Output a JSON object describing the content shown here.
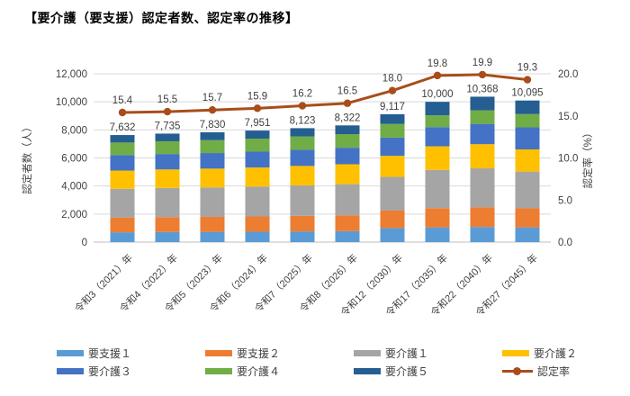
{
  "title": "【要介護（要支援）認定者数、認定率の推移】",
  "colors": {
    "text": "#404040",
    "title_text": "#000000",
    "grid": "#D9D9D9",
    "axis_line": "#BFBFBF"
  },
  "chart_data": {
    "type": "combo-stacked-bar-line",
    "grid": "on",
    "legend_position": "bottom",
    "categories": [
      "令和3（2021）年",
      "令和4（2022）年",
      "令和5（2023）年",
      "令和6（2024）年",
      "令和7（2025）年",
      "令和8（2026）年",
      "令和12（2030）年",
      "令和17（2035）年",
      "令和22（2040）年",
      "令和27（2045）年"
    ],
    "bar_totals": [
      7632,
      7735,
      7830,
      7951,
      8123,
      8322,
      9117,
      10000,
      10368,
      10095
    ],
    "bar_total_labels": [
      "7,632",
      "7,735",
      "7,830",
      "7,951",
      "8,123",
      "8,322",
      "9,117",
      "10,000",
      "10,368",
      "10,095"
    ],
    "series": [
      {
        "name": "要支援１",
        "color": "#5B9BD5",
        "values": [
          700,
          720,
          730,
          740,
          760,
          780,
          1000,
          1050,
          1080,
          1050
        ]
      },
      {
        "name": "要支援２",
        "color": "#ED7D31",
        "values": [
          1050,
          1060,
          1070,
          1090,
          1110,
          1130,
          1250,
          1370,
          1400,
          1360
        ]
      },
      {
        "name": "要介護１",
        "color": "#A5A5A5",
        "values": [
          2050,
          2080,
          2100,
          2130,
          2170,
          2220,
          2400,
          2730,
          2780,
          2620
        ]
      },
      {
        "name": "要介護２",
        "color": "#FFC000",
        "values": [
          1300,
          1320,
          1340,
          1360,
          1390,
          1420,
          1500,
          1680,
          1720,
          1580
        ]
      },
      {
        "name": "要介護３",
        "color": "#4472C4",
        "values": [
          1100,
          1100,
          1110,
          1130,
          1150,
          1180,
          1300,
          1370,
          1450,
          1570
        ]
      },
      {
        "name": "要介護４",
        "color": "#70AD47",
        "values": [
          900,
          910,
          920,
          930,
          950,
          970,
          980,
          840,
          960,
          950
        ]
      },
      {
        "name": "要介護５",
        "color": "#255E91",
        "values": [
          532,
          545,
          560,
          571,
          593,
          622,
          687,
          960,
          978,
          965
        ]
      }
    ],
    "line": {
      "name": "認定率",
      "color": "#A84D1A",
      "values": [
        15.4,
        15.5,
        15.7,
        15.9,
        16.2,
        16.5,
        18.0,
        19.8,
        19.9,
        19.3
      ],
      "labels": [
        "15.4",
        "15.5",
        "15.7",
        "15.9",
        "16.2",
        "16.5",
        "18.0",
        "19.8",
        "19.9",
        "19.3"
      ]
    },
    "left_axis": {
      "title": "認定者数（人）",
      "min": 0,
      "max": 12000,
      "step": 2000,
      "tick_labels": [
        "0",
        "2,000",
        "4,000",
        "6,000",
        "8,000",
        "10,000",
        "12,000"
      ]
    },
    "right_axis": {
      "title": "認定率（%）",
      "min": 0,
      "max": 20,
      "step": 5,
      "tick_labels": [
        "0.0",
        "5.0",
        "10.0",
        "15.0",
        "20.0"
      ]
    },
    "legend": {
      "rows": [
        [
          "要支援１",
          "要支援２",
          "要介護１",
          "要介護２"
        ],
        [
          "要介護３",
          "要介護４",
          "要介護５",
          "認定率"
        ]
      ]
    }
  }
}
